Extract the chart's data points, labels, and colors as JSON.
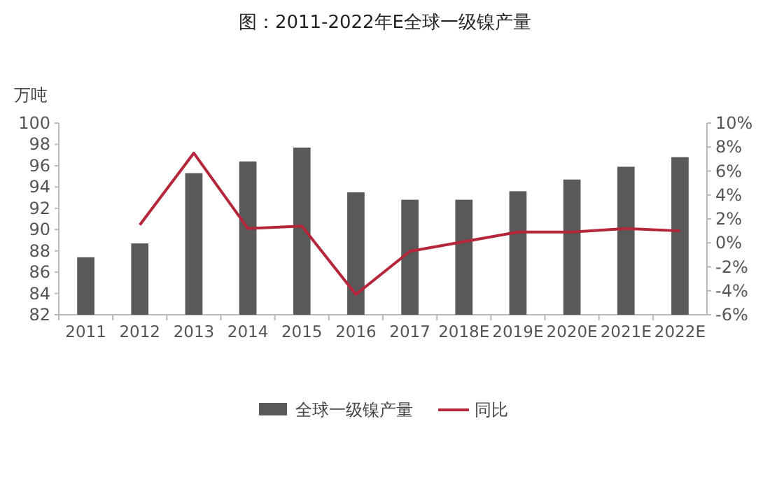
{
  "chart_data": {
    "type": "bar",
    "title": "图：2011-2022年E全球一级镍产量",
    "ylabel": "万吨",
    "categories": [
      "2011",
      "2012",
      "2013",
      "2014",
      "2015",
      "2016",
      "2017",
      "2018E",
      "2019E",
      "2020E",
      "2021E",
      "2022E"
    ],
    "series": [
      {
        "name": "全球一级镍产量",
        "color": "#595959",
        "values": [
          87.4,
          88.7,
          95.3,
          96.4,
          97.7,
          93.5,
          92.8,
          92.8,
          93.6,
          94.7,
          95.9,
          96.8
        ]
      },
      {
        "name": "同比",
        "type": "line",
        "axis": "y2",
        "color": "#b5263a",
        "values": [
          null,
          1.5,
          7.5,
          1.2,
          1.4,
          -4.3,
          -0.7,
          0.1,
          0.9,
          0.9,
          1.2,
          1.0
        ]
      }
    ],
    "ylim": [
      82,
      100
    ],
    "yticks": [
      82,
      84,
      86,
      88,
      90,
      92,
      94,
      96,
      98,
      100
    ],
    "y2lim": [
      -6,
      10
    ],
    "y2ticks": [
      {
        "value": -6,
        "label": "-6%"
      },
      {
        "value": -4,
        "label": "-4%"
      },
      {
        "value": -2,
        "label": "-2%"
      },
      {
        "value": 0,
        "label": "0%"
      },
      {
        "value": 2,
        "label": "2%"
      },
      {
        "value": 4,
        "label": "4%"
      },
      {
        "value": 6,
        "label": "6%"
      },
      {
        "value": 8,
        "label": "8%"
      },
      {
        "value": 10,
        "label": "10%"
      }
    ],
    "legend": "bottom"
  }
}
